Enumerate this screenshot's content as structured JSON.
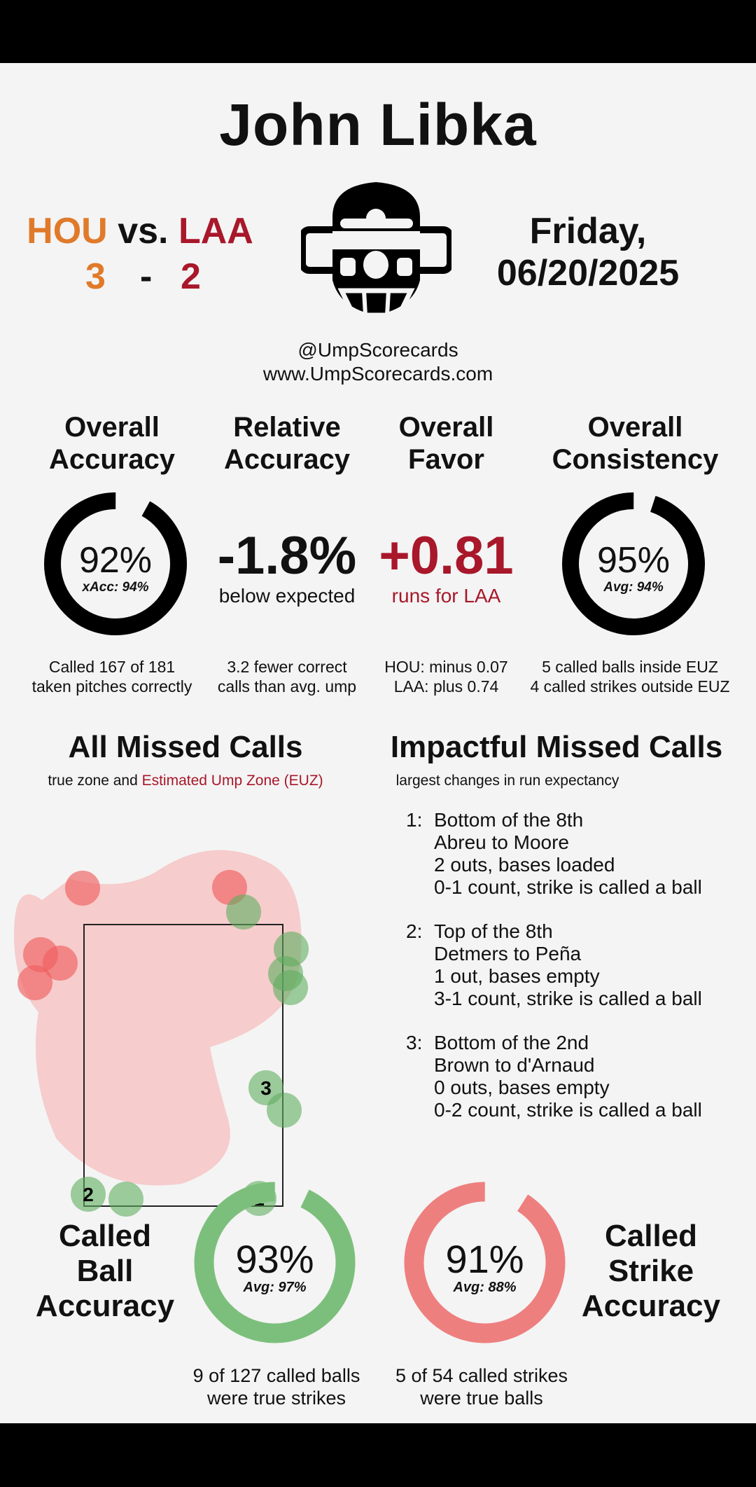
{
  "umpire": "John Libka",
  "game": {
    "home_team": "HOU",
    "vs": "vs.",
    "away_team": "LAA",
    "home_score": "3",
    "dash": "-",
    "away_score": "2",
    "day": "Friday,",
    "date": "06/20/2025",
    "colors": {
      "HOU": "#e07a2a",
      "LAA": "#a8172a"
    }
  },
  "branding": {
    "handle": "@UmpScorecards",
    "website": "www.UmpScorecards.com",
    "logo_icon": "umpire-mask-icon"
  },
  "stats": {
    "overall_accuracy": {
      "heading": [
        "Overall",
        "Accuracy"
      ],
      "value": "92%",
      "sub": "xAcc: 94%",
      "fraction": 0.92,
      "desc": [
        "Called 167 of 181",
        "taken pitches correctly"
      ]
    },
    "relative_accuracy": {
      "heading": [
        "Relative",
        "Accuracy"
      ],
      "value": "-1.8%",
      "sub": "below expected",
      "desc": [
        "3.2 fewer correct",
        "calls than avg. ump"
      ]
    },
    "overall_favor": {
      "heading": [
        "Overall",
        "Favor"
      ],
      "value": "+0.81",
      "sub": "runs for LAA",
      "desc": [
        "HOU: minus 0.07",
        "LAA: plus 0.74"
      ]
    },
    "overall_consistency": {
      "heading": [
        "Overall",
        "Consistency"
      ],
      "value": "95%",
      "sub": "Avg: 94%",
      "fraction": 0.95,
      "desc": [
        "5 called balls inside EUZ",
        "4 called strikes outside EUZ"
      ]
    }
  },
  "missed_calls": {
    "title": "All Missed Calls",
    "subtitle_a": "true zone and",
    "subtitle_b": "Estimated Ump Zone (EUZ)",
    "labels": [
      "1",
      "2",
      "3"
    ]
  },
  "impactful": {
    "title": "Impactful Missed Calls",
    "subtitle": "largest changes in run expectancy",
    "items": [
      {
        "num": "1:",
        "lines": [
          "Bottom of the 8th",
          "Abreu to Moore",
          "2 outs, bases loaded",
          "0-1 count, strike is called a ball"
        ]
      },
      {
        "num": "2:",
        "lines": [
          "Top of the 8th",
          "Detmers to Peña",
          "1 out, bases empty",
          "3-1 count, strike is called a ball"
        ]
      },
      {
        "num": "3:",
        "lines": [
          "Bottom of the 2nd",
          "Brown to d'Arnaud",
          "0 outs, bases empty",
          "0-2 count, strike is called a ball"
        ]
      }
    ]
  },
  "ball_accuracy": {
    "heading": [
      "Called",
      "Ball",
      "Accuracy"
    ],
    "value": "93%",
    "sub": "Avg: 97%",
    "fraction": 0.93,
    "color": "#7cbf7c",
    "desc": [
      "9 of 127 called balls",
      "were true strikes"
    ]
  },
  "strike_accuracy": {
    "heading": [
      "Called",
      "Strike",
      "Accuracy"
    ],
    "value": "91%",
    "sub": "Avg: 88%",
    "fraction": 0.91,
    "color": "#ee7f7f",
    "desc": [
      "5 of 54 called strikes",
      "were true balls"
    ]
  }
}
